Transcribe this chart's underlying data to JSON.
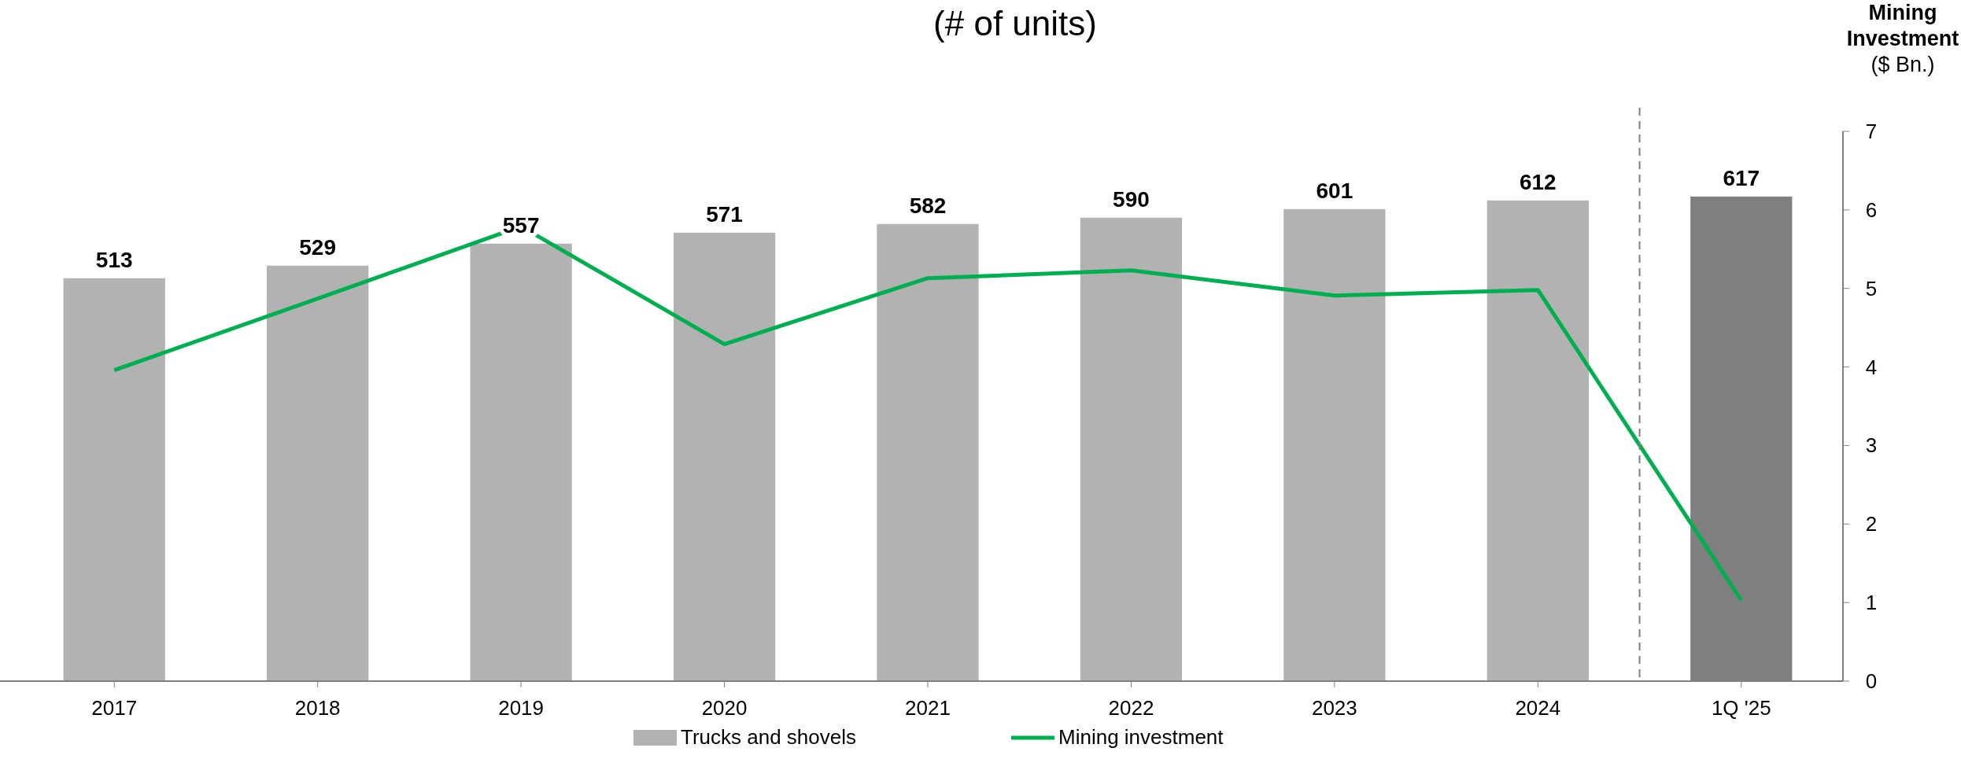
{
  "chart_data": {
    "type": "bar",
    "title": "(# of units)",
    "y2label": "Mining Investment ($ Bn.)",
    "categories": [
      "2017",
      "2018",
      "2019",
      "2020",
      "2021",
      "2022",
      "2023",
      "2024",
      "1Q '25"
    ],
    "series": [
      {
        "name": "Trucks and shovels",
        "color": "#b2b2b2",
        "colors": [
          "#b2b2b2",
          "#b2b2b2",
          "#b2b2b2",
          "#b2b2b2",
          "#b2b2b2",
          "#b2b2b2",
          "#b2b2b2",
          "#b2b2b2",
          "#7f7f7f"
        ],
        "values": [
          513,
          529,
          557,
          571,
          582,
          590,
          601,
          612,
          617
        ],
        "value_labels": [
          "513",
          "529",
          "557",
          "571",
          "582",
          "590",
          "601",
          "612",
          "617"
        ]
      },
      {
        "name": "Mining investment",
        "type": "line",
        "axis": "y2",
        "color": "#00b050",
        "values": [
          3.96,
          4.87,
          5.79,
          4.29,
          5.13,
          5.23,
          4.91,
          4.98,
          1.03
        ]
      }
    ],
    "ylim": [
      0,
      700
    ],
    "y2lim": [
      0,
      7
    ],
    "y2ticks": [
      0,
      1,
      2,
      3,
      4,
      5,
      6,
      7
    ],
    "legend": "bottom",
    "marker": "none",
    "line_style": "solid"
  }
}
